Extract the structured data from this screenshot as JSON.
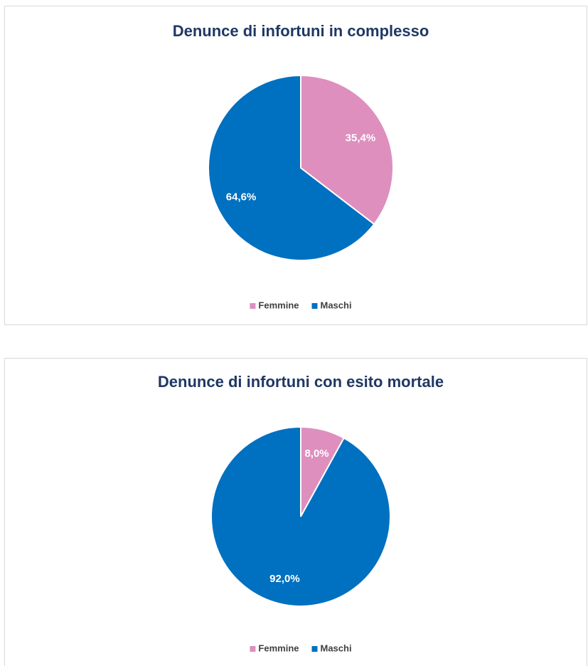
{
  "chart_data": [
    {
      "type": "pie",
      "title": "Denunce di infortuni in complesso",
      "categories": [
        "Femmine",
        "Maschi"
      ],
      "values": [
        35.4,
        64.6
      ],
      "value_labels": [
        "35,4%",
        "64,6%"
      ],
      "colors": [
        "#de8fbe",
        "#0070c0"
      ]
    },
    {
      "type": "pie",
      "title": "Denunce di infortuni con esito mortale",
      "categories": [
        "Femmine",
        "Maschi"
      ],
      "values": [
        8.0,
        92.0
      ],
      "value_labels": [
        "8,0%",
        "92,0%"
      ],
      "colors": [
        "#de8fbe",
        "#0070c0"
      ]
    }
  ]
}
